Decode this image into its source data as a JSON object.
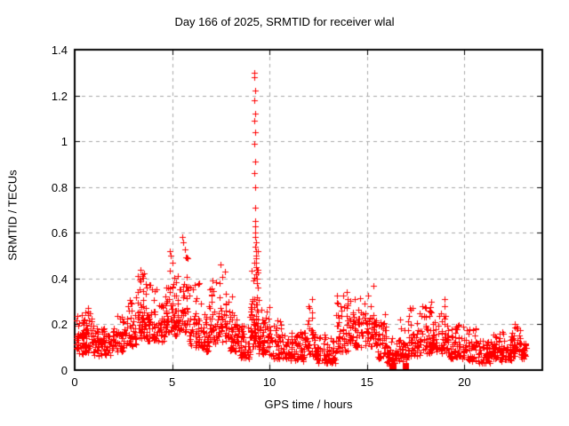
{
  "page": {
    "background": "#ffffff"
  },
  "chart_data": {
    "type": "scatter",
    "title": "Day 166 of 2025, SRMTID for receiver wlal",
    "xlabel": "GPS time / hours",
    "ylabel": "SRMTID / TECUs",
    "xlim": [
      0,
      24
    ],
    "ylim": [
      0,
      1.4
    ],
    "xticks": [
      0,
      5,
      10,
      15,
      20
    ],
    "xtick_labels": [
      "0",
      "5",
      "10",
      "15",
      "20"
    ],
    "yticks": [
      0,
      0.2,
      0.4,
      0.6,
      0.8,
      1.0,
      1.2,
      1.4
    ],
    "ytick_labels": [
      "0",
      "0.2",
      "0.4",
      "0.6",
      "0.8",
      "1",
      "1.2",
      "1.4"
    ],
    "grid": true,
    "grid_color": "#a9a9a9",
    "legend": "none",
    "marker": {
      "shape": "plus",
      "color": "#ff0000",
      "size": 7
    },
    "series": [
      {
        "name": "SRMTID",
        "peak_points": [
          [
            9.22,
            1.3
          ],
          [
            9.23,
            1.28
          ],
          [
            9.24,
            1.22
          ],
          [
            9.22,
            1.18
          ],
          [
            9.25,
            1.12
          ],
          [
            9.23,
            1.09
          ],
          [
            9.24,
            1.04
          ],
          [
            9.22,
            0.99
          ],
          [
            9.25,
            0.91
          ],
          [
            9.23,
            0.86
          ],
          [
            9.24,
            0.8
          ],
          [
            9.26,
            0.71
          ],
          [
            9.25,
            0.65
          ],
          [
            9.27,
            0.63
          ],
          [
            9.28,
            0.6
          ],
          [
            9.26,
            0.58
          ],
          [
            9.3,
            0.56
          ],
          [
            9.28,
            0.54
          ],
          [
            9.31,
            0.52
          ],
          [
            9.29,
            0.5
          ],
          [
            9.33,
            0.49
          ],
          [
            9.3,
            0.47
          ],
          [
            9.32,
            0.45
          ],
          [
            9.35,
            0.44
          ],
          [
            9.31,
            0.42
          ],
          [
            9.34,
            0.4
          ],
          [
            9.36,
            0.38
          ],
          [
            9.38,
            0.52
          ],
          [
            9.4,
            0.44
          ],
          [
            9.42,
            0.36
          ],
          [
            0.68,
            0.27
          ],
          [
            3.38,
            0.44
          ],
          [
            4.88,
            0.52
          ],
          [
            4.92,
            0.5
          ],
          [
            5.52,
            0.58
          ],
          [
            5.56,
            0.56
          ],
          [
            7.48,
            0.46
          ],
          [
            12.18,
            0.31
          ],
          [
            13.98,
            0.34
          ],
          [
            15.35,
            0.37
          ],
          [
            17.35,
            0.27
          ],
          [
            18.3,
            0.3
          ],
          [
            19.0,
            0.31
          ],
          [
            22.6,
            0.2
          ]
        ],
        "square_points": [
          [
            16.35,
            0.02
          ],
          [
            16.97,
            0.02
          ]
        ],
        "clusters": [
          [
            0.05,
            0.7,
            55,
            0.07,
            0.14,
            0.24
          ],
          [
            0.5,
            0.95,
            30,
            0.09,
            0.17,
            0.27
          ],
          [
            0.95,
            1.85,
            70,
            0.06,
            0.12,
            0.2
          ],
          [
            1.85,
            2.6,
            55,
            0.08,
            0.15,
            0.25
          ],
          [
            2.6,
            3.15,
            40,
            0.1,
            0.18,
            0.31
          ],
          [
            3.15,
            3.65,
            50,
            0.14,
            0.27,
            0.43
          ],
          [
            3.65,
            4.2,
            50,
            0.12,
            0.22,
            0.38
          ],
          [
            4.2,
            4.7,
            40,
            0.12,
            0.2,
            0.33
          ],
          [
            4.7,
            5.1,
            40,
            0.16,
            0.28,
            0.5
          ],
          [
            5.1,
            5.45,
            30,
            0.15,
            0.26,
            0.44
          ],
          [
            5.45,
            5.85,
            35,
            0.16,
            0.3,
            0.56
          ],
          [
            5.85,
            6.45,
            45,
            0.1,
            0.2,
            0.4
          ],
          [
            6.45,
            6.95,
            40,
            0.08,
            0.16,
            0.3
          ],
          [
            6.95,
            7.35,
            35,
            0.1,
            0.22,
            0.42
          ],
          [
            7.35,
            7.95,
            45,
            0.12,
            0.24,
            0.45
          ],
          [
            7.95,
            8.45,
            45,
            0.08,
            0.17,
            0.33
          ],
          [
            8.45,
            9.0,
            50,
            0.05,
            0.1,
            0.2
          ],
          [
            9.0,
            9.45,
            65,
            0.1,
            0.22,
            0.5
          ],
          [
            9.45,
            10.0,
            50,
            0.07,
            0.14,
            0.28
          ],
          [
            10.0,
            10.7,
            50,
            0.05,
            0.12,
            0.22
          ],
          [
            10.7,
            11.8,
            80,
            0.04,
            0.09,
            0.17
          ],
          [
            11.8,
            12.35,
            40,
            0.06,
            0.14,
            0.3
          ],
          [
            12.35,
            13.4,
            70,
            0.03,
            0.08,
            0.16
          ],
          [
            13.4,
            14.1,
            55,
            0.08,
            0.17,
            0.33
          ],
          [
            14.1,
            14.9,
            55,
            0.1,
            0.2,
            0.33
          ],
          [
            14.9,
            15.5,
            45,
            0.1,
            0.2,
            0.35
          ],
          [
            15.5,
            16.0,
            40,
            0.05,
            0.13,
            0.27
          ],
          [
            16.0,
            16.5,
            40,
            0.02,
            0.07,
            0.15
          ],
          [
            16.5,
            17.1,
            45,
            0.04,
            0.1,
            0.22
          ],
          [
            17.1,
            17.7,
            50,
            0.06,
            0.14,
            0.27
          ],
          [
            17.7,
            18.6,
            70,
            0.07,
            0.15,
            0.3
          ],
          [
            18.6,
            19.2,
            45,
            0.07,
            0.15,
            0.3
          ],
          [
            19.2,
            19.9,
            50,
            0.05,
            0.11,
            0.21
          ],
          [
            19.9,
            20.6,
            50,
            0.04,
            0.1,
            0.19
          ],
          [
            20.6,
            21.4,
            55,
            0.03,
            0.07,
            0.13
          ],
          [
            21.4,
            21.8,
            30,
            0.04,
            0.09,
            0.16
          ],
          [
            21.8,
            22.4,
            45,
            0.04,
            0.09,
            0.17
          ],
          [
            22.4,
            22.9,
            40,
            0.06,
            0.12,
            0.2
          ],
          [
            22.9,
            23.2,
            25,
            0.05,
            0.09,
            0.14
          ]
        ]
      }
    ],
    "prng_seed": 166
  }
}
